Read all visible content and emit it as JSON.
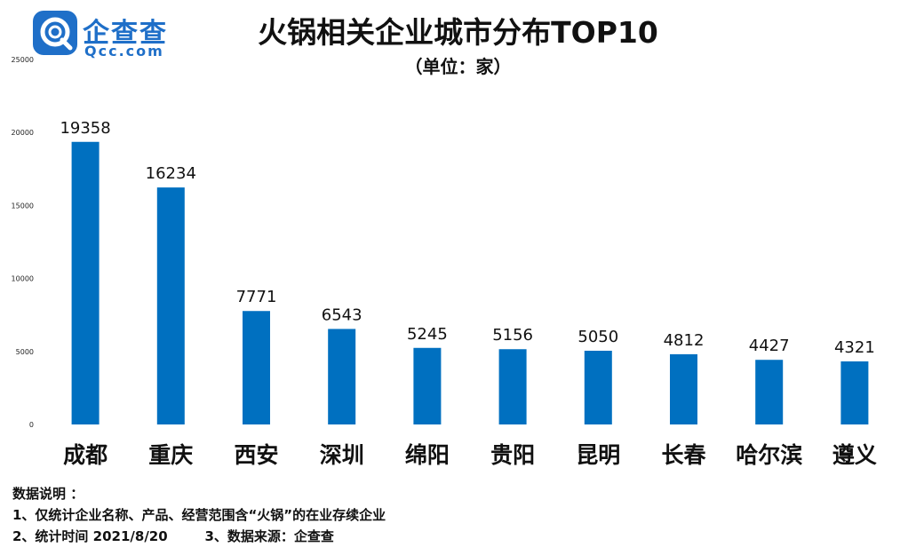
{
  "brand": {
    "name_cn": "企查查",
    "name_en": "Qcc.com"
  },
  "chart_data": {
    "type": "bar",
    "title": "火锅相关企业城市分布TOP10",
    "subtitle": "（单位：家）",
    "categories": [
      "成都",
      "重庆",
      "西安",
      "深圳",
      "绵阳",
      "贵阳",
      "昆明",
      "长春",
      "哈尔滨",
      "遵义"
    ],
    "values": [
      19358,
      16234,
      7771,
      6543,
      5245,
      5156,
      5050,
      4812,
      4427,
      4321
    ],
    "ylim": [
      0,
      25000
    ],
    "yticks": [
      "0",
      "5000",
      "10000",
      "15000",
      "20000",
      "25000"
    ],
    "bar_color": "#0070c0",
    "grid": false,
    "legend": "none"
  },
  "notes": {
    "heading": "数据说明 ：",
    "line1": "1、仅统计企业名称、产品、经营范围含“火锅”的在业存续企业",
    "line2": "2、统计时间 2021/8/20        3、数据来源：企查查"
  }
}
